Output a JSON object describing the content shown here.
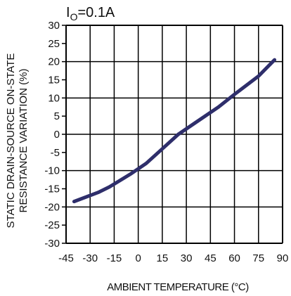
{
  "chart_data": {
    "type": "line",
    "annotation": {
      "main": "I",
      "sub": "O",
      "rest": "=0.1A"
    },
    "xlabel": "AMBIENT TEMPERATURE (°C)",
    "ylabel_line1": "STATIC DRAIN-SOURCE ON-STATE",
    "ylabel_line2": "RESISTANCE VARIATION (%)",
    "xlim": [
      -45,
      90
    ],
    "ylim": [
      -30,
      30
    ],
    "xticks": [
      "-45",
      "-30",
      "-15",
      "0",
      "15",
      "30",
      "45",
      "60",
      "75",
      "90"
    ],
    "yticks": [
      "30",
      "25",
      "20",
      "15",
      "10",
      "5",
      "0",
      "-5",
      "-10",
      "-15",
      "-20",
      "-25",
      "-30"
    ],
    "grid": true,
    "series": [
      {
        "color": "#2e2e6b",
        "x": [
          -40,
          -25,
          -18,
          -5,
          5,
          15,
          25,
          35,
          50,
          60,
          75,
          85
        ],
        "y": [
          -18.5,
          -16,
          -14.5,
          -11,
          -8,
          -4,
          0,
          3,
          7.5,
          11,
          16,
          20.5
        ]
      }
    ]
  }
}
